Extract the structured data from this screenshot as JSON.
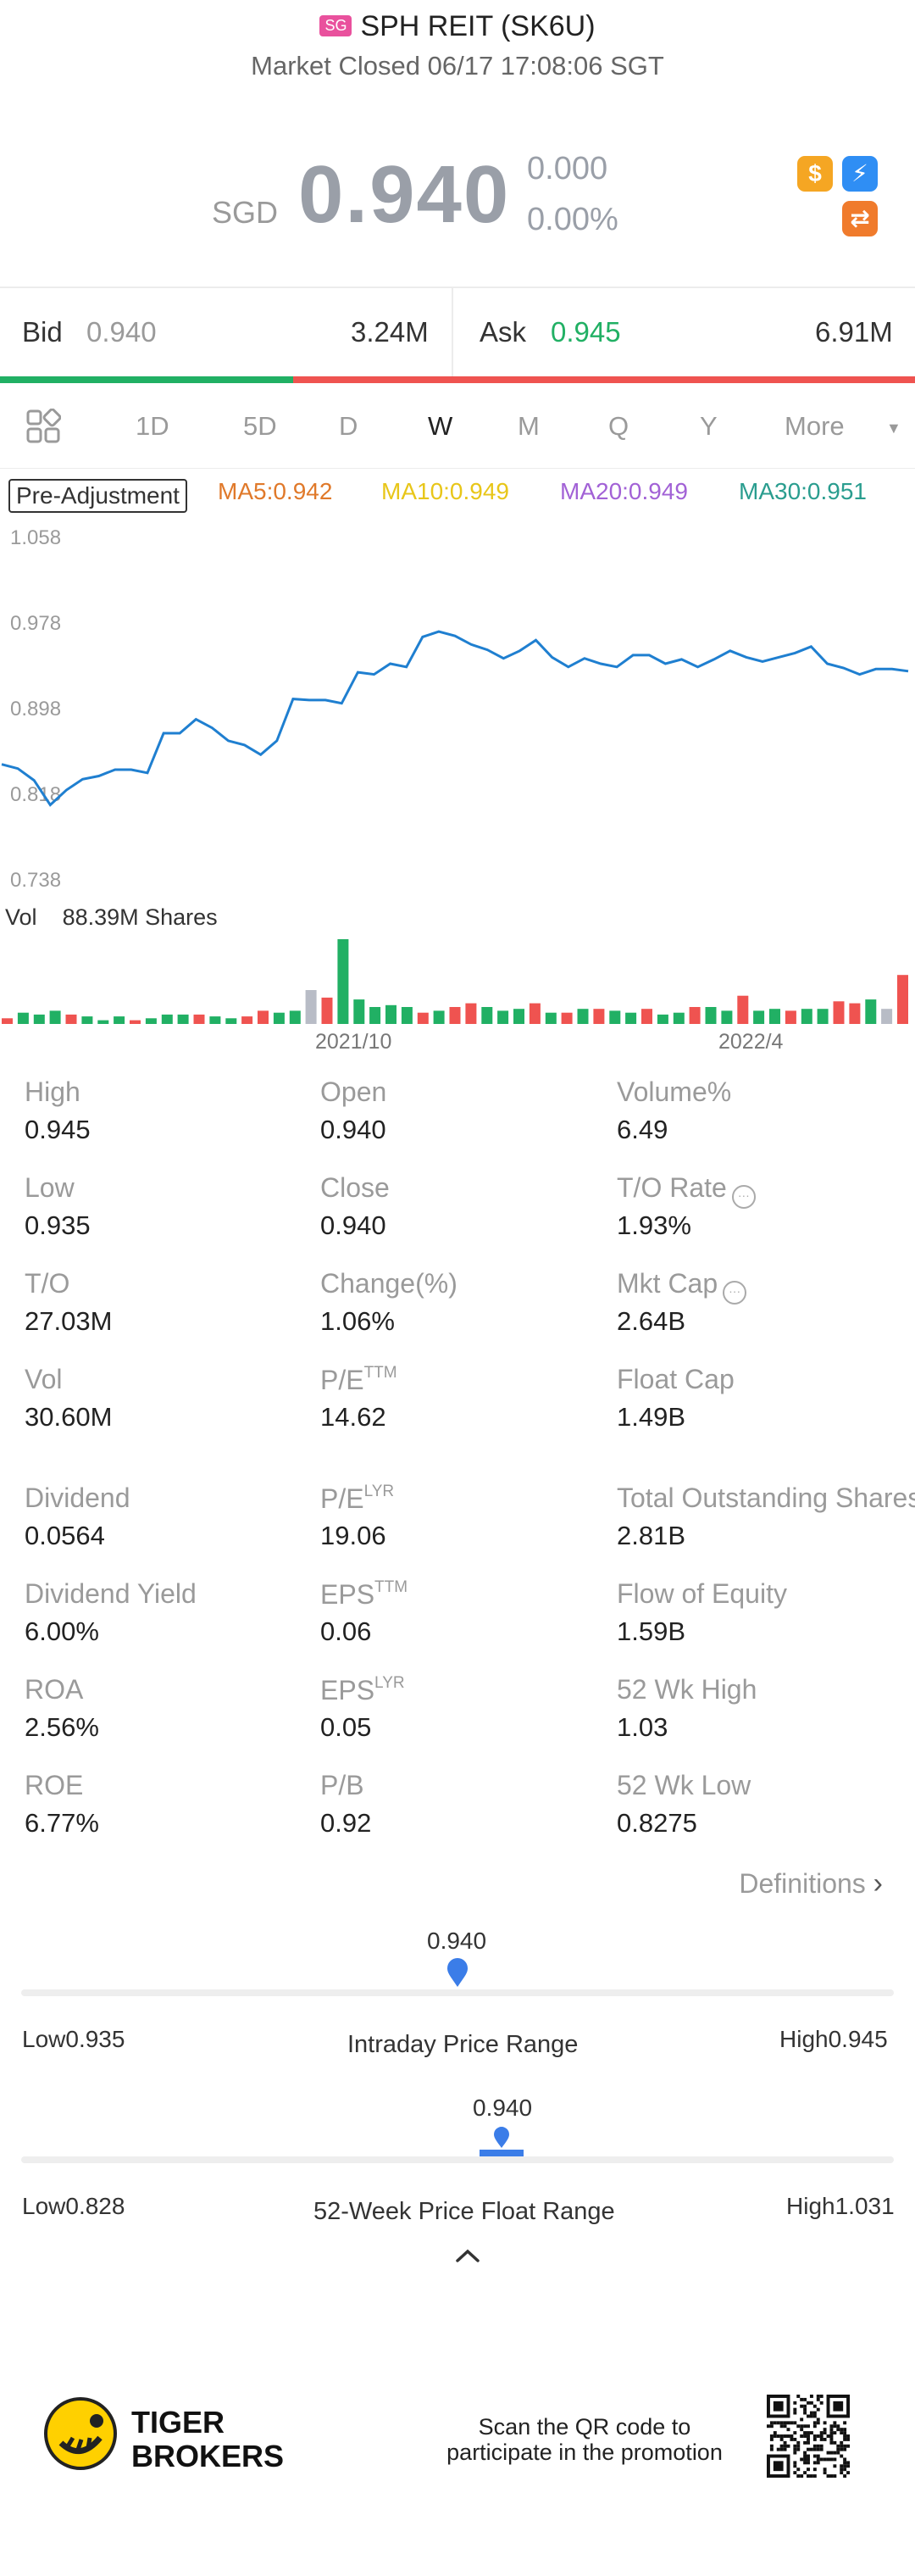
{
  "header": {
    "market_badge": "SG",
    "stock_title": "SPH REIT (SK6U)",
    "status": "Market Closed 06/17 17:08:06 SGT"
  },
  "quote": {
    "currency": "SGD",
    "price": "0.940",
    "change": "0.000",
    "change_pct": "0.00%",
    "icons": [
      "dollar-icon",
      "flash-icon",
      "shuffle-icon"
    ]
  },
  "bid_ask": {
    "bid_label": "Bid",
    "bid_price": "0.940",
    "bid_size": "3.24M",
    "ask_label": "Ask",
    "ask_price": "0.945",
    "ask_size": "6.91M",
    "bid_ratio": 0.32
  },
  "period_tabs": {
    "items": [
      "1D",
      "5D",
      "D",
      "W",
      "M",
      "Q",
      "Y",
      "More"
    ],
    "active": "W"
  },
  "indicators": {
    "pre_adjustment": "Pre-Adjustment",
    "ma5": "MA5:0.942",
    "ma10": "MA10:0.949",
    "ma20": "MA20:0.949",
    "ma30": "MA30:0.951"
  },
  "volume": {
    "label": "Vol",
    "value": "88.39M Shares"
  },
  "chart_data": {
    "type": "line",
    "y_ticks": [
      "1.058",
      "0.978",
      "0.898",
      "0.818",
      "0.738"
    ],
    "ylim": [
      0.738,
      1.058
    ],
    "x_tick_labels": [
      "2021/10",
      "2022/4"
    ],
    "price_values": [
      0.846,
      0.842,
      0.831,
      0.808,
      0.822,
      0.832,
      0.835,
      0.841,
      0.841,
      0.838,
      0.875,
      0.875,
      0.888,
      0.88,
      0.868,
      0.864,
      0.855,
      0.868,
      0.907,
      0.906,
      0.906,
      0.903,
      0.932,
      0.93,
      0.94,
      0.937,
      0.965,
      0.97,
      0.966,
      0.958,
      0.953,
      0.945,
      0.952,
      0.962,
      0.946,
      0.937,
      0.945,
      0.94,
      0.937,
      0.948,
      0.948,
      0.94,
      0.944,
      0.937,
      0.944,
      0.952,
      0.946,
      0.942,
      0.946,
      0.95,
      0.956,
      0.94,
      0.936,
      0.93,
      0.935,
      0.935,
      0.933
    ],
    "volume_colors": [
      "r",
      "g",
      "g",
      "g",
      "r",
      "g",
      "g",
      "g",
      "r",
      "g",
      "g",
      "g",
      "r",
      "g",
      "g",
      "r",
      "r",
      "g",
      "g",
      "x",
      "r",
      "g",
      "g",
      "g",
      "g",
      "g",
      "r",
      "g",
      "r",
      "r",
      "g",
      "g",
      "g",
      "r",
      "g",
      "r",
      "g",
      "r",
      "g",
      "g",
      "r",
      "g",
      "g",
      "r",
      "g",
      "g",
      "r",
      "g",
      "g",
      "r",
      "g",
      "g",
      "r",
      "r",
      "g",
      "x",
      "r"
    ],
    "volume_values": [
      3,
      6,
      5,
      7,
      5,
      4,
      2,
      4,
      2,
      3,
      5,
      5,
      5,
      4,
      3,
      4,
      7,
      6,
      7,
      18,
      14,
      45,
      13,
      9,
      10,
      9,
      6,
      7,
      9,
      11,
      9,
      7,
      8,
      11,
      6,
      6,
      8,
      8,
      7,
      6,
      8,
      5,
      6,
      9,
      9,
      7,
      15,
      7,
      8,
      7,
      8,
      8,
      12,
      11,
      13,
      8,
      26
    ]
  },
  "stats": [
    {
      "label": "High",
      "value": "0.945"
    },
    {
      "label": "Open",
      "value": "0.940"
    },
    {
      "label": "Volume%",
      "value": "6.49"
    },
    {
      "label": "Low",
      "value": "0.935"
    },
    {
      "label": "Close",
      "value": "0.940"
    },
    {
      "label": "T/O Rate",
      "value": "1.93%",
      "info": true
    },
    {
      "label": "T/O",
      "value": "27.03M"
    },
    {
      "label": "Change(%)",
      "value": "1.06%"
    },
    {
      "label": "Mkt Cap",
      "value": "2.64B",
      "info": true
    },
    {
      "label": "Vol",
      "value": "30.60M"
    },
    {
      "label": "P/E",
      "sup": "TTM",
      "value": "14.62"
    },
    {
      "label": "Float Cap",
      "value": "1.49B"
    },
    {
      "label": "Dividend",
      "value": "0.0564"
    },
    {
      "label": "P/E",
      "sup": "LYR",
      "value": "19.06"
    },
    {
      "label": "Total Outstanding Shares",
      "value": "2.81B"
    },
    {
      "label": "Dividend Yield",
      "value": "6.00%"
    },
    {
      "label": "EPS",
      "sup": "TTM",
      "value": "0.06"
    },
    {
      "label": "Flow of Equity",
      "value": "1.59B"
    },
    {
      "label": "ROA",
      "value": "2.56%"
    },
    {
      "label": "EPS",
      "sup": "LYR",
      "value": "0.05"
    },
    {
      "label": "52 Wk High",
      "value": "1.03"
    },
    {
      "label": "ROE",
      "value": "6.77%"
    },
    {
      "label": "P/B",
      "value": "0.92"
    },
    {
      "label": "52 Wk Low",
      "value": "0.8275"
    }
  ],
  "definitions_label": "Definitions",
  "intraday_range": {
    "current": "0.940",
    "low_label": "Low0.935",
    "high_label": "High0.945",
    "title": "Intraday Price Range",
    "position": 0.5
  },
  "week52_range": {
    "current": "0.940",
    "low_label": "Low0.828",
    "high_label": "High1.031",
    "title": "52-Week Price Float Range",
    "position": 0.55
  },
  "footer": {
    "brand_line1": "TIGER",
    "brand_line2": "BROKERS",
    "promo_line1": "Scan the QR code to",
    "promo_line2": "participate in the promotion"
  },
  "colors": {
    "green": "#21b064",
    "red": "#ef5350",
    "line": "#1f7fd0",
    "ma5": "#e0792a",
    "ma10": "#e8c619",
    "ma20": "#a262d6",
    "ma30": "#2a9d8f",
    "range_marker": "#3b7de8"
  }
}
